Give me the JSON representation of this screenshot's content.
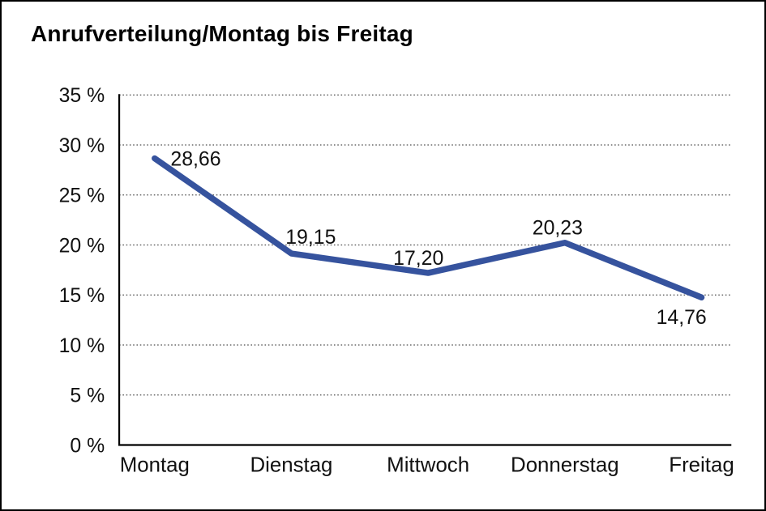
{
  "chart_data": {
    "type": "line",
    "title": "Anrufverteilung/Montag bis Freitag",
    "categories": [
      "Montag",
      "Dienstag",
      "Mittwoch",
      "Donnerstag",
      "Freitag"
    ],
    "series": [
      {
        "name": "Anrufverteilung",
        "values": [
          28.66,
          19.15,
          17.2,
          20.23,
          14.76
        ]
      }
    ],
    "point_labels": [
      "28,66",
      "19,15",
      "17,20",
      "20,23",
      "14,76"
    ],
    "y_axis": {
      "ticks": [
        "0 %",
        "5 %",
        "10 %",
        "15 %",
        "20 %",
        "25 %",
        "30 %",
        "35 %"
      ],
      "min": 0,
      "max": 35,
      "step": 5,
      "unit": "%"
    },
    "xlabel": "",
    "ylabel": "",
    "grid": "horizontal-dotted",
    "legend": "none",
    "line_color": "#36539E",
    "axis_color": "#000000",
    "text_color": "#111111",
    "background": "#FFFFFF"
  }
}
